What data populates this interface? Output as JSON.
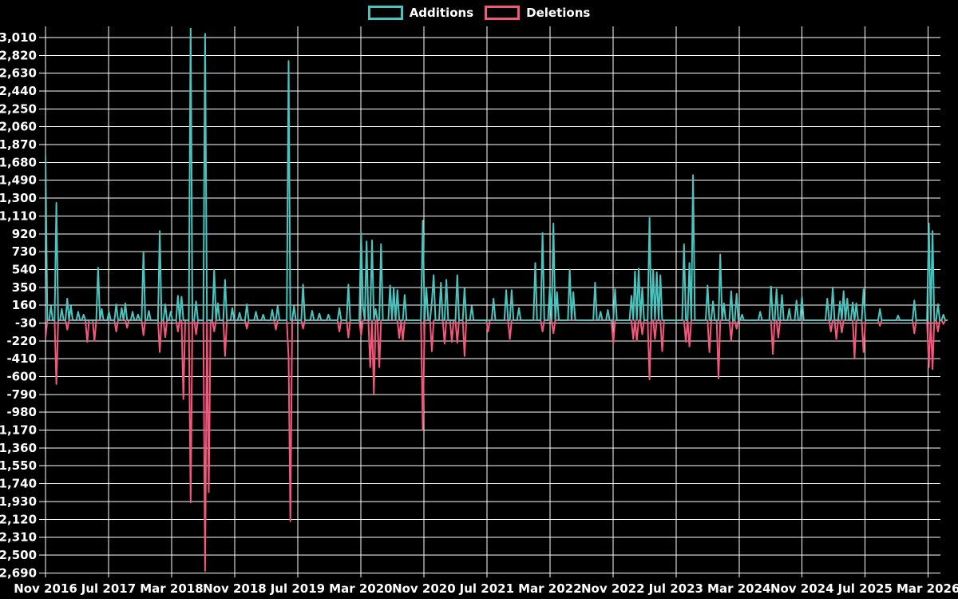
{
  "legend": {
    "items": [
      {
        "label": "Additions",
        "color": "#49c5bf"
      },
      {
        "label": "Deletions",
        "color": "#f4567c"
      }
    ]
  },
  "chart_data": {
    "type": "line",
    "title": "",
    "background_color": "#000000",
    "grid_color": "#ffffff",
    "text_color": "#ffffff",
    "legend_position": "top-center",
    "grid": true,
    "x_axis": {
      "tick_labels": [
        "Nov 2016",
        "Jul 2017",
        "Mar 2018",
        "Nov 2018",
        "Jul 2019",
        "Mar 2020",
        "Nov 2020",
        "Jul 2021",
        "Mar 2022",
        "Nov 2022",
        "Jul 2023",
        "Mar 2024",
        "Nov 2024",
        "Jul 2025",
        "Mar 2026"
      ],
      "unit": "week",
      "weeks_per_tick": 34.76,
      "total_weeks": 497
    },
    "y_axis": {
      "min": -2690,
      "max": 3010,
      "step": 190,
      "tick_labels": [
        "3,010",
        "2,820",
        "2,630",
        "2,440",
        "2,250",
        "2,060",
        "1,870",
        "1,680",
        "1,490",
        "1,300",
        "1,110",
        "920",
        "730",
        "540",
        "350",
        "160",
        "-30",
        "-220",
        "-410",
        "-600",
        "-790",
        "-980",
        "-1,170",
        "-1,360",
        "-1,550",
        "-1,740",
        "-1,930",
        "-2,120",
        "-2,310",
        "-2,500",
        "-2,690"
      ]
    },
    "series": [
      {
        "name": "Additions",
        "color": "#49c5bf",
        "baseline": 0,
        "points": [
          [
            0,
            1750
          ],
          [
            3,
            150
          ],
          [
            6,
            1250
          ],
          [
            9,
            120
          ],
          [
            12,
            230
          ],
          [
            14,
            150
          ],
          [
            18,
            90
          ],
          [
            21,
            60
          ],
          [
            29,
            560
          ],
          [
            31,
            120
          ],
          [
            35,
            90
          ],
          [
            39,
            170
          ],
          [
            42,
            130
          ],
          [
            44,
            180
          ],
          [
            48,
            90
          ],
          [
            51,
            60
          ],
          [
            54,
            730
          ],
          [
            57,
            100
          ],
          [
            63,
            950
          ],
          [
            66,
            170
          ],
          [
            69,
            90
          ],
          [
            73,
            260
          ],
          [
            75,
            250
          ],
          [
            80,
            3200
          ],
          [
            83,
            200
          ],
          [
            88,
            3050
          ],
          [
            93,
            540
          ],
          [
            95,
            180
          ],
          [
            99,
            430
          ],
          [
            103,
            130
          ],
          [
            107,
            80
          ],
          [
            111,
            170
          ],
          [
            116,
            90
          ],
          [
            120,
            60
          ],
          [
            125,
            110
          ],
          [
            128,
            150
          ],
          [
            134,
            2760
          ],
          [
            137,
            150
          ],
          [
            142,
            380
          ],
          [
            147,
            100
          ],
          [
            151,
            70
          ],
          [
            156,
            60
          ],
          [
            162,
            130
          ],
          [
            167,
            380
          ],
          [
            174,
            930
          ],
          [
            175,
            150
          ],
          [
            177,
            840
          ],
          [
            180,
            850
          ],
          [
            182,
            120
          ],
          [
            185,
            810
          ],
          [
            190,
            370
          ],
          [
            192,
            340
          ],
          [
            194,
            320
          ],
          [
            198,
            270
          ],
          [
            208,
            1060
          ],
          [
            210,
            345
          ],
          [
            213,
            200
          ],
          [
            214,
            480
          ],
          [
            218,
            400
          ],
          [
            221,
            430
          ],
          [
            227,
            480
          ],
          [
            231,
            340
          ],
          [
            235,
            150
          ],
          [
            247,
            230
          ],
          [
            254,
            320
          ],
          [
            257,
            320
          ],
          [
            261,
            130
          ],
          [
            270,
            610
          ],
          [
            274,
            930
          ],
          [
            278,
            330
          ],
          [
            280,
            1030
          ],
          [
            282,
            300
          ],
          [
            289,
            540
          ],
          [
            291,
            300
          ],
          [
            303,
            400
          ],
          [
            306,
            90
          ],
          [
            310,
            110
          ],
          [
            314,
            330
          ],
          [
            323,
            260
          ],
          [
            325,
            520
          ],
          [
            327,
            550
          ],
          [
            329,
            350
          ],
          [
            333,
            1090
          ],
          [
            335,
            540
          ],
          [
            337,
            510
          ],
          [
            339,
            480
          ],
          [
            352,
            810
          ],
          [
            355,
            610
          ],
          [
            357,
            1545
          ],
          [
            365,
            370
          ],
          [
            368,
            200
          ],
          [
            372,
            700
          ],
          [
            374,
            180
          ],
          [
            378,
            310
          ],
          [
            381,
            280
          ],
          [
            384,
            60
          ],
          [
            394,
            90
          ],
          [
            400,
            360
          ],
          [
            403,
            330
          ],
          [
            406,
            270
          ],
          [
            410,
            120
          ],
          [
            414,
            210
          ],
          [
            417,
            250
          ],
          [
            431,
            230
          ],
          [
            434,
            350
          ],
          [
            438,
            200
          ],
          [
            440,
            310
          ],
          [
            442,
            230
          ],
          [
            445,
            190
          ],
          [
            447,
            180
          ],
          [
            451,
            330
          ],
          [
            460,
            120
          ],
          [
            470,
            50
          ],
          [
            479,
            210
          ],
          [
            487,
            1030
          ],
          [
            489,
            950
          ],
          [
            492,
            170
          ],
          [
            495,
            60
          ]
        ]
      },
      {
        "name": "Deletions",
        "color": "#f4567c",
        "baseline": 0,
        "points": [
          [
            0,
            -190
          ],
          [
            6,
            -680
          ],
          [
            12,
            -100
          ],
          [
            23,
            -230
          ],
          [
            27,
            -220
          ],
          [
            39,
            -120
          ],
          [
            45,
            -80
          ],
          [
            54,
            -160
          ],
          [
            63,
            -340
          ],
          [
            66,
            -180
          ],
          [
            73,
            -120
          ],
          [
            76,
            -840
          ],
          [
            80,
            -1940
          ],
          [
            83,
            -150
          ],
          [
            88,
            -2670
          ],
          [
            90,
            -1830
          ],
          [
            93,
            -120
          ],
          [
            99,
            -380
          ],
          [
            111,
            -90
          ],
          [
            127,
            -100
          ],
          [
            134,
            -400
          ],
          [
            135,
            -2140
          ],
          [
            142,
            -90
          ],
          [
            162,
            -120
          ],
          [
            167,
            -185
          ],
          [
            174,
            -160
          ],
          [
            179,
            -500
          ],
          [
            181,
            -780
          ],
          [
            184,
            -500
          ],
          [
            195,
            -190
          ],
          [
            197,
            -215
          ],
          [
            208,
            -1170
          ],
          [
            213,
            -330
          ],
          [
            220,
            -250
          ],
          [
            224,
            -230
          ],
          [
            227,
            -240
          ],
          [
            231,
            -380
          ],
          [
            244,
            -120
          ],
          [
            256,
            -200
          ],
          [
            274,
            -120
          ],
          [
            280,
            -140
          ],
          [
            313,
            -250
          ],
          [
            324,
            -200
          ],
          [
            326,
            -220
          ],
          [
            329,
            -150
          ],
          [
            333,
            -630
          ],
          [
            336,
            -200
          ],
          [
            340,
            -330
          ],
          [
            353,
            -230
          ],
          [
            355,
            -280
          ],
          [
            366,
            -340
          ],
          [
            371,
            -620
          ],
          [
            378,
            -215
          ],
          [
            381,
            -90
          ],
          [
            401,
            -360
          ],
          [
            404,
            -185
          ],
          [
            433,
            -120
          ],
          [
            436,
            -200
          ],
          [
            439,
            -130
          ],
          [
            446,
            -400
          ],
          [
            451,
            -340
          ],
          [
            460,
            -60
          ],
          [
            479,
            -140
          ],
          [
            487,
            -500
          ],
          [
            489,
            -520
          ],
          [
            492,
            -120
          ],
          [
            495,
            -40
          ]
        ]
      }
    ]
  }
}
